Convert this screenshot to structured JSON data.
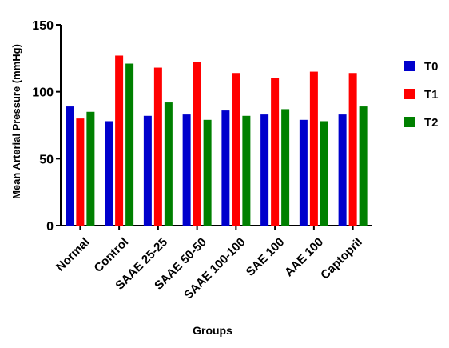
{
  "chart_data": {
    "type": "bar",
    "xlabel": "Groups",
    "ylabel": "Mean Arterial Pressure (mmHg)",
    "ylim": [
      0,
      150
    ],
    "yticks": [
      "0",
      "50",
      "100",
      "150"
    ],
    "categories": [
      "Normal",
      "Control",
      "SAAE 25-25",
      "SAAE 50-50",
      "SAAE 100-100",
      "SAE 100",
      "AAE 100",
      "Captopril"
    ],
    "series": [
      {
        "name": "T0",
        "color": "#0000cc",
        "values": [
          89,
          78,
          82,
          83,
          86,
          83,
          79,
          83
        ]
      },
      {
        "name": "T1",
        "color": "#ff0000",
        "values": [
          80,
          127,
          118,
          122,
          114,
          110,
          115,
          114
        ]
      },
      {
        "name": "T2",
        "color": "#008000",
        "values": [
          85,
          121,
          92,
          79,
          82,
          87,
          78,
          89
        ]
      }
    ],
    "grid": false,
    "legend_position": "right"
  }
}
